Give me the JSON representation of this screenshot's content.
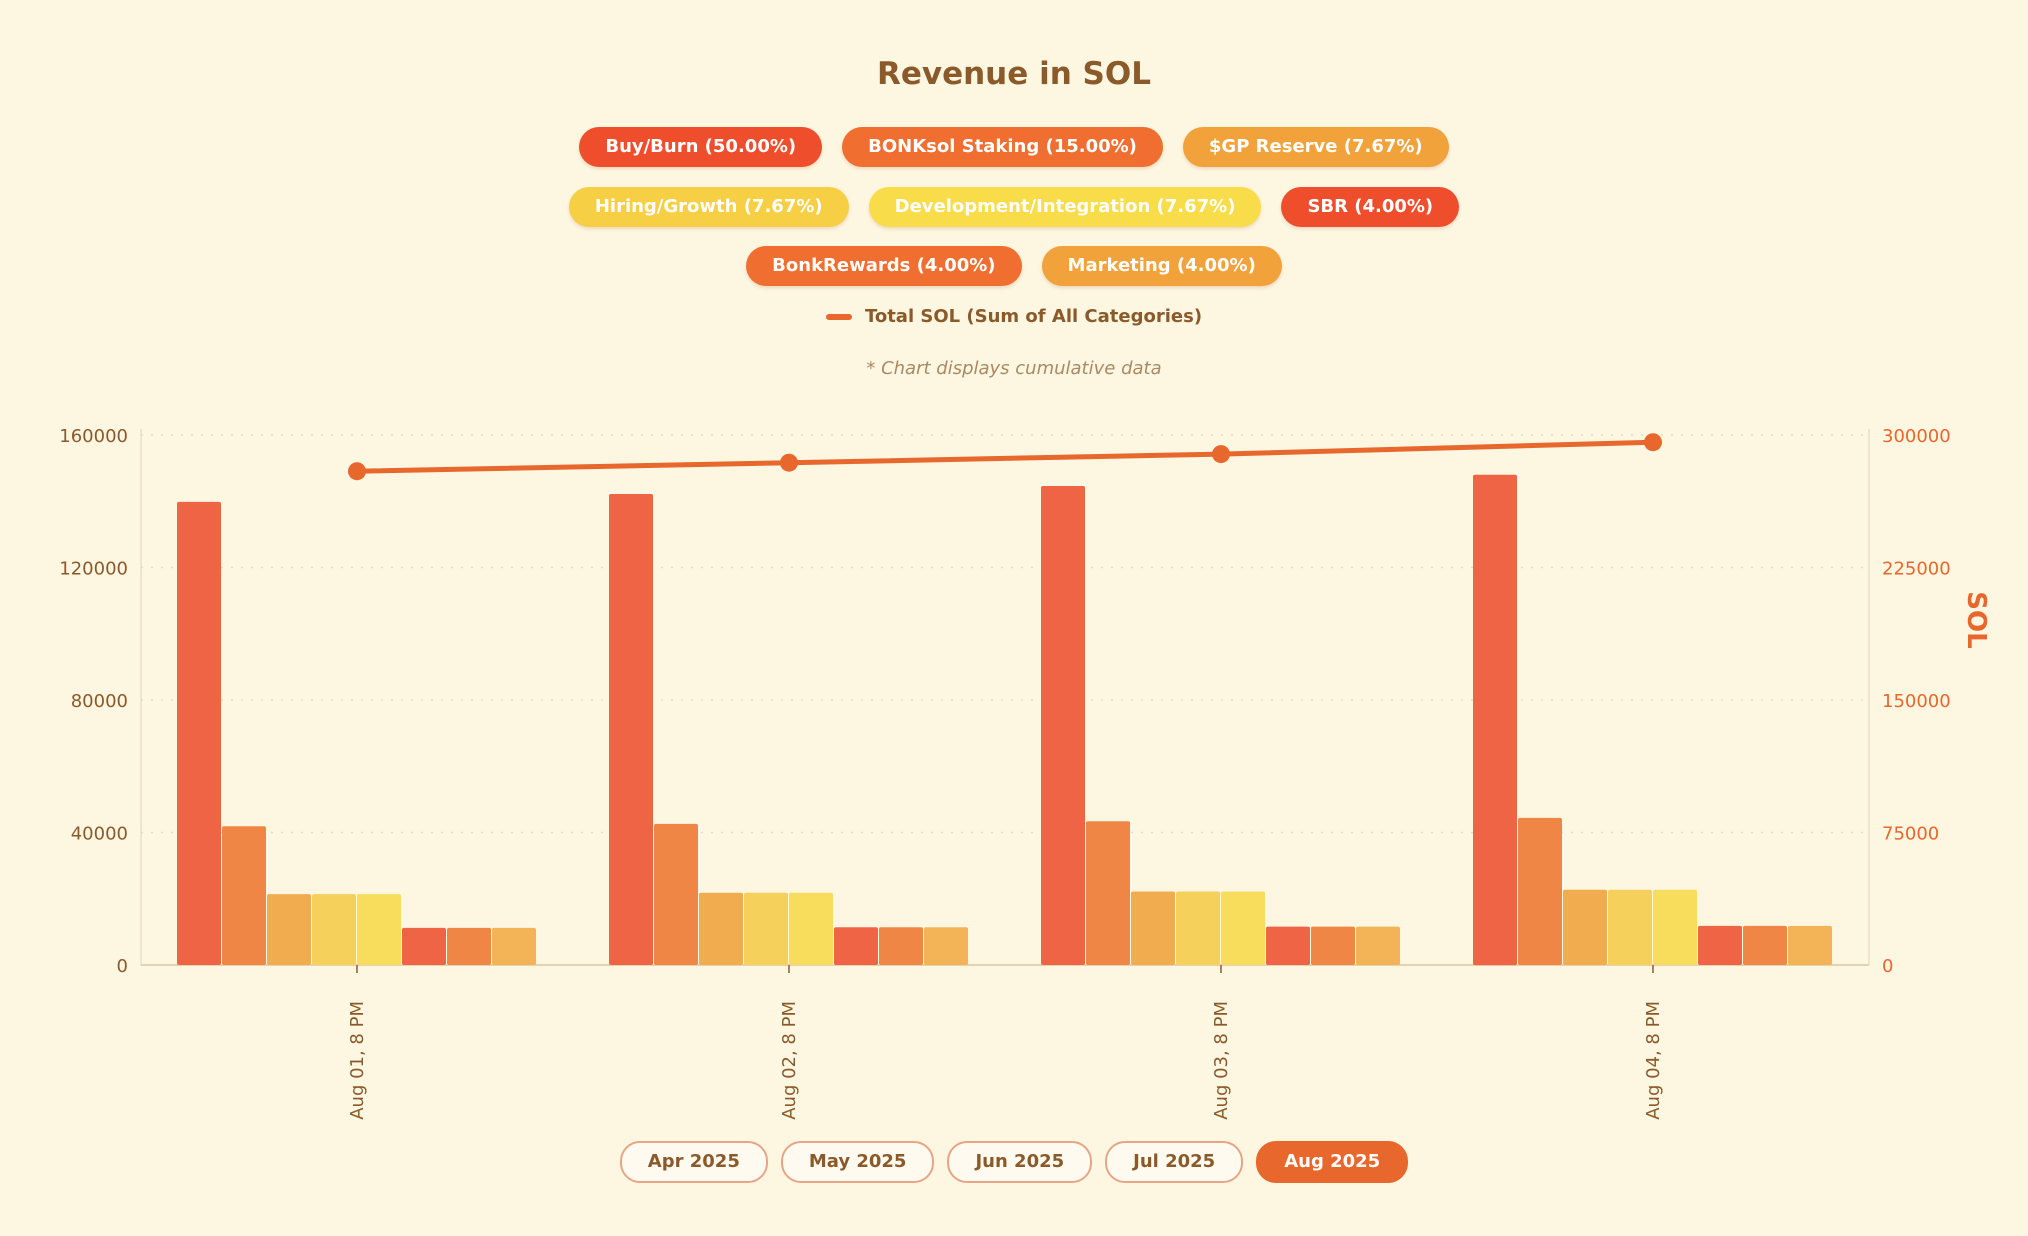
{
  "chart_data": {
    "type": "bar",
    "title": "Revenue in SOL",
    "note": "* Chart displays cumulative data",
    "categories": [
      "Aug 01, 8 PM",
      "Aug 02, 8 PM",
      "Aug 03, 8 PM",
      "Aug 04, 8 PM"
    ],
    "series": [
      {
        "name": "Buy/Burn (50.00%)",
        "color": "#ee4e2c",
        "bar_color": "#ef6445",
        "values": [
          139800,
          142200,
          144600,
          148000
        ]
      },
      {
        "name": "BONKsol Staking (15.00%)",
        "color": "#ef6e30",
        "bar_color": "#ef8646",
        "values": [
          41900,
          42600,
          43400,
          44400
        ]
      },
      {
        "name": "$GP Reserve (7.67%)",
        "color": "#f2a23a",
        "bar_color": "#f2ac50",
        "values": [
          21400,
          21800,
          22200,
          22700
        ]
      },
      {
        "name": "Hiring/Growth (7.67%)",
        "color": "#f7cf45",
        "bar_color": "#f5d05a",
        "values": [
          21400,
          21800,
          22200,
          22700
        ]
      },
      {
        "name": "Development/Integration (7.67%)",
        "color": "#f9dc4a",
        "bar_color": "#f8dc5c",
        "values": [
          21400,
          21800,
          22200,
          22700
        ]
      },
      {
        "name": "SBR (4.00%)",
        "color": "#ee4e2c",
        "bar_color": "#ef6445",
        "values": [
          11200,
          11400,
          11600,
          11800
        ]
      },
      {
        "name": "BonkRewards (4.00%)",
        "color": "#ef6e30",
        "bar_color": "#ef8646",
        "values": [
          11200,
          11400,
          11600,
          11800
        ]
      },
      {
        "name": "Marketing (4.00%)",
        "color": "#f2a23a",
        "bar_color": "#f2b456",
        "values": [
          11200,
          11400,
          11600,
          11800
        ]
      }
    ],
    "line_series": {
      "name": "Total SOL (Sum of All Categories)",
      "color": "#e8672c",
      "values": [
        279500,
        284300,
        289200,
        295900
      ]
    },
    "y_left": {
      "min": 0,
      "max": 160000,
      "ticks": [
        "0",
        "40000",
        "80000",
        "120000",
        "160000"
      ]
    },
    "y_right": {
      "label": "SOL",
      "min": 0,
      "max": 300000,
      "ticks": [
        "0",
        "75000",
        "150000",
        "225000",
        "300000"
      ]
    },
    "grid": true,
    "legend_position": "top"
  },
  "legend_rows": [
    [
      0,
      1,
      2
    ],
    [
      3,
      4,
      5
    ],
    [
      6,
      7
    ]
  ],
  "period_tabs": [
    {
      "label": "Apr 2025",
      "active": false
    },
    {
      "label": "May 2025",
      "active": false
    },
    {
      "label": "Jun 2025",
      "active": false
    },
    {
      "label": "Jul 2025",
      "active": false
    },
    {
      "label": "Aug 2025",
      "active": true
    }
  ],
  "colors": {
    "background": "#fdf6e1",
    "text": "#8b5a2b",
    "accent": "#e8672c",
    "grid": "#e8dcc0"
  }
}
